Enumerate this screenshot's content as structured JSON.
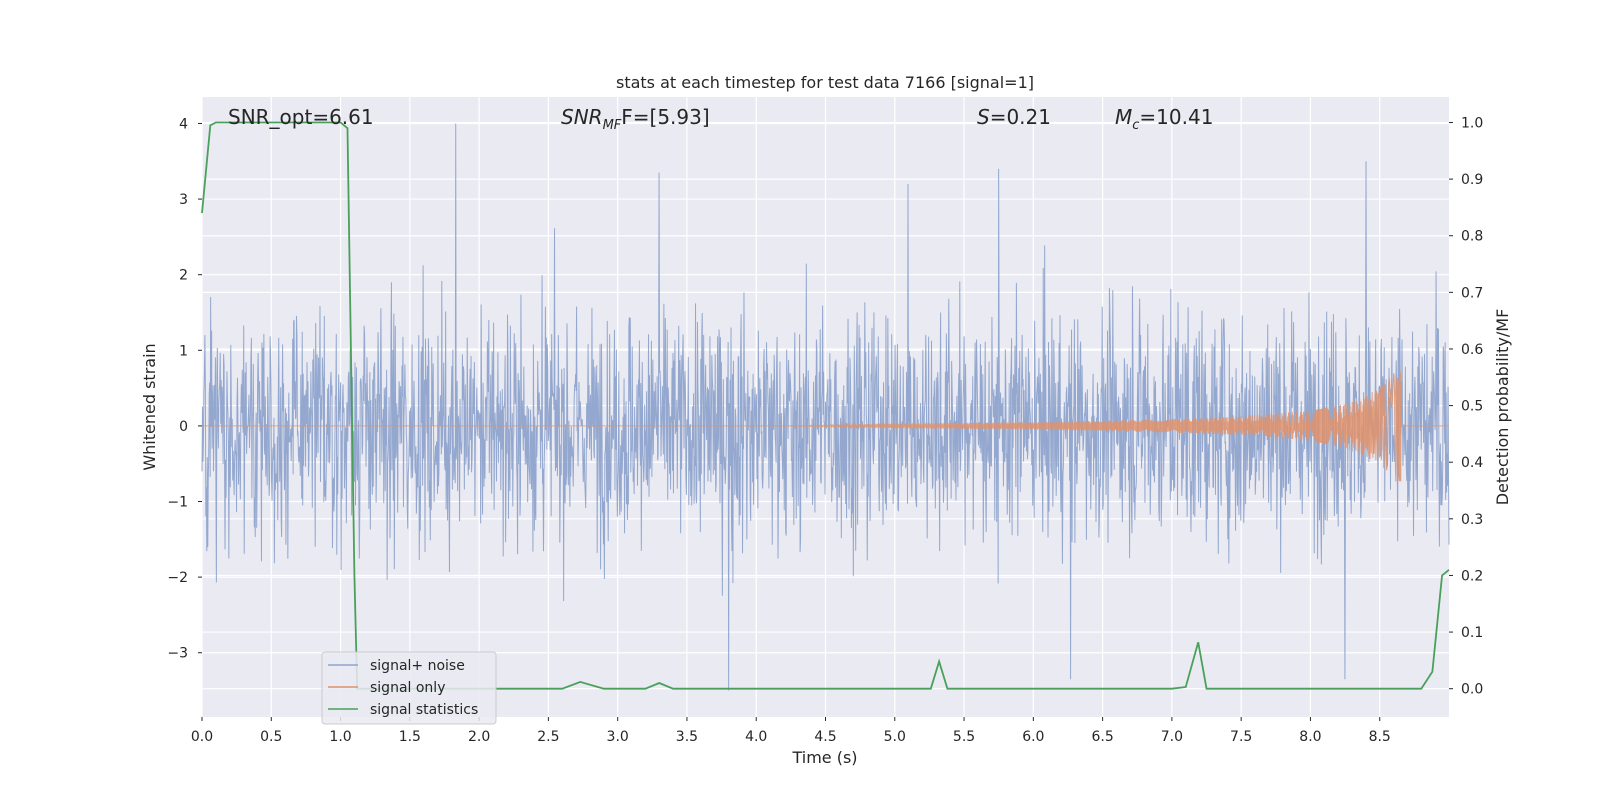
{
  "chart_data": {
    "type": "line",
    "title": "stats at each timestep for test data 7166 [signal=1]",
    "xlabel": "Time (s)",
    "ylabel": "Whitened strain",
    "y2label": "Detection probability/MF",
    "xlim": [
      0.0,
      9.0
    ],
    "ylim": [
      -3.85,
      4.35
    ],
    "y2lim": [
      -0.05,
      1.045
    ],
    "xticks": [
      "0.0",
      "0.5",
      "1.0",
      "1.5",
      "2.0",
      "2.5",
      "3.0",
      "3.5",
      "4.0",
      "4.5",
      "5.0",
      "5.5",
      "6.0",
      "6.5",
      "7.0",
      "7.5",
      "8.0",
      "8.5"
    ],
    "yticks": [
      "4",
      "3",
      "2",
      "1",
      "0",
      "−1",
      "−2",
      "−3"
    ],
    "y2ticks": [
      "1.0",
      "0.9",
      "0.8",
      "0.7",
      "0.6",
      "0.5",
      "0.4",
      "0.3",
      "0.2",
      "0.1",
      "0.0"
    ],
    "grid": true,
    "legend_position": "lower-left",
    "annotations": {
      "snr_opt": "SNR_opt=6.61",
      "snr_mf_base": "SNR",
      "snr_mf_sub": "MF",
      "snr_mf_value": "F=[5.93]",
      "s_symbol": "S",
      "s_value": "=0.21",
      "mc_base": "M",
      "mc_sub": "c",
      "mc_value": "=10.41"
    },
    "series": [
      {
        "name": "signal+ noise",
        "color": "#8fa4cc",
        "description": "whitened strain, noise envelope approx +/-1.5 with spikes to ~4.0 and ~-3.5",
        "peaks": [
          [
            1.83,
            4.0
          ],
          [
            3.3,
            3.35
          ],
          [
            5.75,
            3.4
          ],
          [
            8.4,
            3.5
          ],
          [
            3.8,
            -3.5
          ],
          [
            6.27,
            -3.35
          ],
          [
            8.25,
            -3.35
          ]
        ]
      },
      {
        "name": "signal only",
        "color": "#e0926b",
        "description": "chirp signal growing after ~4.2 s, peak amplitude ~0.85 at ~8.65 s",
        "envelope": [
          [
            0.0,
            0.0
          ],
          [
            4.2,
            0.0
          ],
          [
            5.0,
            0.03
          ],
          [
            6.0,
            0.05
          ],
          [
            7.0,
            0.09
          ],
          [
            7.5,
            0.13
          ],
          [
            8.0,
            0.2
          ],
          [
            8.3,
            0.32
          ],
          [
            8.5,
            0.5
          ],
          [
            8.6,
            0.7
          ],
          [
            8.65,
            0.85
          ],
          [
            8.67,
            0.0
          ],
          [
            9.0,
            0.0
          ]
        ]
      },
      {
        "name": "signal statistics",
        "color": "#4aa05a",
        "x": [
          0.0,
          0.06,
          0.1,
          0.3,
          1.0,
          1.05,
          1.1,
          1.12,
          1.2,
          2.0,
          2.6,
          2.73,
          2.9,
          3.2,
          3.3,
          3.4,
          4.0,
          5.0,
          5.26,
          5.32,
          5.38,
          6.0,
          7.0,
          7.1,
          7.19,
          7.25,
          8.0,
          8.8,
          8.88,
          8.95,
          9.0
        ],
        "y": [
          0.84,
          0.995,
          1.0,
          1.0,
          1.0,
          0.99,
          0.2,
          0.0,
          0.0,
          0.0,
          0.0,
          0.012,
          0.0,
          0.0,
          0.01,
          0.0,
          0.0,
          0.0,
          0.0,
          0.048,
          0.0,
          0.0,
          0.0,
          0.003,
          0.082,
          0.0,
          0.0,
          0.0,
          0.03,
          0.2,
          0.21
        ]
      }
    ]
  }
}
